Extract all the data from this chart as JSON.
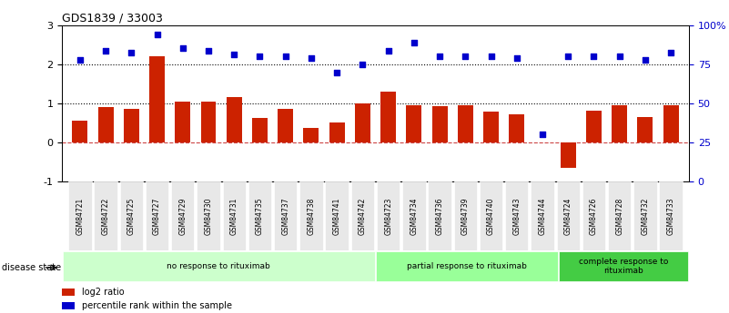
{
  "title": "GDS1839 / 33003",
  "samples": [
    "GSM84721",
    "GSM84722",
    "GSM84725",
    "GSM84727",
    "GSM84729",
    "GSM84730",
    "GSM84731",
    "GSM84735",
    "GSM84737",
    "GSM84738",
    "GSM84741",
    "GSM84742",
    "GSM84723",
    "GSM84734",
    "GSM84736",
    "GSM84739",
    "GSM84740",
    "GSM84743",
    "GSM84744",
    "GSM84724",
    "GSM84726",
    "GSM84728",
    "GSM84732",
    "GSM84733"
  ],
  "log2_ratio": [
    0.55,
    0.9,
    0.85,
    2.2,
    1.05,
    1.05,
    1.15,
    0.62,
    0.85,
    0.38,
    0.52,
    1.0,
    1.3,
    0.95,
    0.92,
    0.95,
    0.78,
    0.72,
    0.0,
    -0.65,
    0.8,
    0.95,
    0.65,
    0.95
  ],
  "percentile": [
    2.1,
    2.35,
    2.3,
    2.75,
    2.4,
    2.35,
    2.25,
    2.2,
    2.2,
    2.15,
    1.78,
    2.0,
    2.35,
    2.55,
    2.2,
    2.2,
    2.2,
    2.15,
    0.2,
    2.2,
    2.2,
    2.2,
    2.1,
    2.3
  ],
  "groups": [
    {
      "label": "no response to rituximab",
      "start": 0,
      "end": 12,
      "color": "#ccffcc"
    },
    {
      "label": "partial response to rituximab",
      "start": 12,
      "end": 19,
      "color": "#99ff99"
    },
    {
      "label": "complete response to\nrituximab",
      "start": 19,
      "end": 24,
      "color": "#44cc44"
    }
  ],
  "bar_color": "#cc2200",
  "dot_color": "#0000cc",
  "ylim_left": [
    -1,
    3
  ],
  "yticks_left": [
    -1,
    0,
    1,
    2,
    3
  ],
  "yticks_right": [
    0,
    25,
    50,
    75,
    100
  ],
  "ytick_labels_right": [
    "0",
    "25",
    "50",
    "75",
    "100%"
  ],
  "disease_state_label": "disease state",
  "legend_items": [
    {
      "color": "#cc2200",
      "label": "log2 ratio"
    },
    {
      "color": "#0000cc",
      "label": "percentile rank within the sample"
    }
  ]
}
